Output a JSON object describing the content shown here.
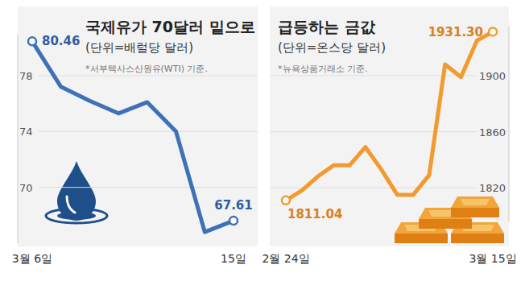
{
  "chart_data": [
    {
      "type": "line",
      "title": "국제유가 70달러 밑으로",
      "subtitle": "(단위=배럴당 달러)",
      "annotations": [
        "*서부텍사스산원유(WTI) 기준."
      ],
      "categories": [
        "3월 6일",
        null,
        null,
        null,
        null,
        null,
        null,
        "15일"
      ],
      "values": [
        80.46,
        77.2,
        76.2,
        75.3,
        76.1,
        74.0,
        66.8,
        67.61
      ],
      "value_labels": [
        "80.46",
        null,
        null,
        null,
        null,
        null,
        null,
        "67.61"
      ],
      "color": "#3d72b7",
      "marker": "circle",
      "ylim": [
        66,
        81
      ],
      "yticks": [
        70,
        74,
        78
      ],
      "grid": true
    },
    {
      "type": "line",
      "title": "급등하는 금값",
      "subtitle": "(단위=온스당 달러)",
      "annotations": [
        "*뉴욕상품거래소 기준."
      ],
      "categories": [
        "2월 24일",
        null,
        null,
        null,
        null,
        null,
        null,
        null,
        null,
        null,
        null,
        null,
        null,
        "3월 15일"
      ],
      "values": [
        1811.04,
        1818,
        1828,
        1836,
        1836,
        1849,
        1833,
        1815,
        1815,
        1829,
        1908,
        1899,
        1925,
        1931.3
      ],
      "value_labels": [
        "1811.04",
        null,
        null,
        null,
        null,
        null,
        null,
        null,
        null,
        null,
        null,
        null,
        null,
        "1931.30"
      ],
      "color": "#f29a2e",
      "marker": "circle",
      "ylim": [
        1796,
        1935
      ],
      "yticks": [
        1820,
        1860,
        1900
      ],
      "grid": true
    }
  ]
}
